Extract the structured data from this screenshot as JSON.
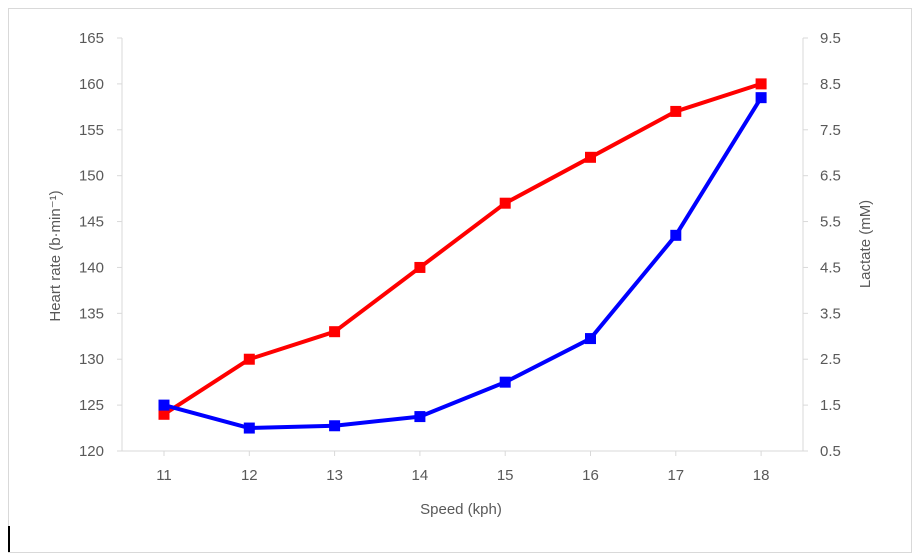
{
  "chart_data": {
    "type": "line",
    "xlabel": "Speed (kph)",
    "ylabel_left": "Heart rate (b·min⁻¹)",
    "ylabel_right": "Lactate (mM)",
    "categories": [
      "11",
      "12",
      "13",
      "14",
      "15",
      "16",
      "17",
      "18"
    ],
    "y_left_ticks": [
      "120",
      "125",
      "130",
      "135",
      "140",
      "145",
      "150",
      "155",
      "160",
      "165"
    ],
    "y_right_ticks": [
      "0.5",
      "1.5",
      "2.5",
      "3.5",
      "4.5",
      "5.5",
      "6.5",
      "7.5",
      "8.5",
      "9.5"
    ],
    "ylim_left": [
      120,
      165
    ],
    "ylim_right": [
      0.5,
      9.5
    ],
    "grid": false,
    "legend": "none",
    "series": [
      {
        "axis": "left",
        "color": "#ff0000",
        "values": [
          124,
          130,
          133,
          140,
          147,
          152,
          157,
          160
        ]
      },
      {
        "axis": "right",
        "color": "#0000ff",
        "values": [
          1.5,
          1.0,
          1.05,
          1.25,
          2.0,
          2.95,
          5.2,
          8.2
        ]
      }
    ]
  }
}
